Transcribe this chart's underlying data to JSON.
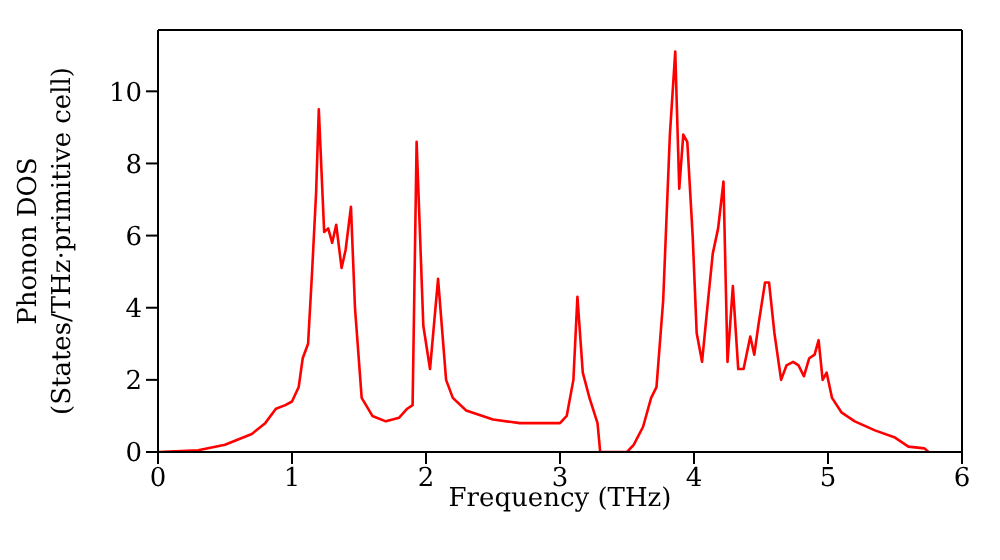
{
  "chart_data": {
    "type": "line",
    "xlabel": "Frequency (THz)",
    "ylabel": "Phonon DOS\n(States/THz·primitive cell)",
    "xlim": [
      0,
      6
    ],
    "xticks": [
      0,
      1,
      2,
      3,
      4,
      5,
      6
    ],
    "ylim": [
      0,
      11.7
    ],
    "yticks": [
      0,
      2,
      4,
      6,
      8,
      10
    ],
    "marker": "none",
    "line_style": "solid",
    "x": [
      0,
      0.3,
      0.5,
      0.7,
      0.8,
      0.88,
      0.95,
      1.0,
      1.05,
      1.08,
      1.12,
      1.15,
      1.18,
      1.2,
      1.24,
      1.27,
      1.3,
      1.33,
      1.37,
      1.4,
      1.44,
      1.47,
      1.52,
      1.6,
      1.7,
      1.8,
      1.86,
      1.9,
      1.93,
      1.98,
      2.03,
      2.09,
      2.15,
      2.2,
      2.3,
      2.5,
      2.7,
      2.9,
      3.0,
      3.05,
      3.1,
      3.13,
      3.17,
      3.22,
      3.28,
      3.3,
      3.5,
      3.55,
      3.62,
      3.68,
      3.72,
      3.77,
      3.82,
      3.86,
      3.89,
      3.92,
      3.95,
      3.99,
      4.02,
      4.06,
      4.11,
      4.14,
      4.18,
      4.22,
      4.25,
      4.29,
      4.33,
      4.37,
      4.42,
      4.45,
      4.48,
      4.53,
      4.56,
      4.6,
      4.65,
      4.69,
      4.74,
      4.78,
      4.82,
      4.86,
      4.9,
      4.93,
      4.96,
      4.99,
      5.03,
      5.1,
      5.2,
      5.35,
      5.5,
      5.6,
      5.72,
      5.75
    ],
    "series": [
      {
        "color": "#ff0000",
        "values": [
          0,
          0.05,
          0.2,
          0.5,
          0.8,
          1.2,
          1.3,
          1.4,
          1.8,
          2.6,
          3.0,
          5.0,
          7.2,
          9.5,
          6.1,
          6.2,
          5.8,
          6.3,
          5.1,
          5.6,
          6.8,
          4.0,
          1.5,
          1.0,
          0.85,
          0.95,
          1.2,
          1.3,
          8.6,
          3.5,
          2.3,
          4.8,
          2.0,
          1.5,
          1.15,
          0.9,
          0.8,
          0.8,
          0.8,
          1.0,
          2.0,
          4.3,
          2.2,
          1.5,
          0.8,
          0,
          0,
          0.2,
          0.7,
          1.5,
          1.8,
          4.2,
          8.8,
          11.1,
          7.3,
          8.8,
          8.6,
          6.0,
          3.3,
          2.5,
          4.4,
          5.5,
          6.2,
          7.5,
          2.5,
          4.6,
          2.3,
          2.3,
          3.2,
          2.7,
          3.5,
          4.7,
          4.7,
          3.3,
          2.0,
          2.4,
          2.5,
          2.4,
          2.1,
          2.6,
          2.7,
          3.1,
          2.0,
          2.2,
          1.5,
          1.1,
          0.85,
          0.6,
          0.4,
          0.15,
          0.1,
          0
        ]
      }
    ]
  }
}
